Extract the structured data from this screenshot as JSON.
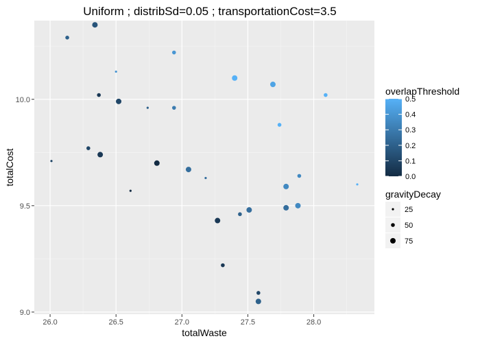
{
  "chart_data": {
    "type": "scatter",
    "title": "Uniform ; distribSd=0.05 ; transportationCost=3.5",
    "xlabel": "totalWaste",
    "ylabel": "totalCost",
    "xlim": [
      25.88,
      28.46
    ],
    "ylim": [
      8.99,
      10.37
    ],
    "xticks": [
      26.0,
      26.5,
      27.0,
      27.5,
      28.0
    ],
    "xtick_labels": [
      "26.0",
      "26.5",
      "27.0",
      "27.5",
      "28.0"
    ],
    "yticks": [
      9.0,
      9.5,
      10.0
    ],
    "ytick_labels": [
      "9.0",
      "9.5",
      "10.0"
    ],
    "grid": true,
    "color_legend": {
      "title": "overlapThreshold",
      "min": 0.0,
      "max": 0.5,
      "low_color": "#132B43",
      "high_color": "#56B1F7",
      "ticks": [
        0.0,
        0.1,
        0.2,
        0.3,
        0.4,
        0.5
      ],
      "tick_labels": [
        "0.0",
        "0.1",
        "0.2",
        "0.3",
        "0.4",
        "0.5"
      ]
    },
    "size_legend": {
      "title": "gravityDecay",
      "values": [
        25,
        50,
        75
      ],
      "labels": [
        "25",
        "50",
        "75"
      ]
    },
    "legend_position": "right",
    "points": [
      {
        "x": 26.34,
        "y": 10.35,
        "overlapThreshold": 0.15,
        "gravityDecay": 75
      },
      {
        "x": 26.13,
        "y": 10.29,
        "overlapThreshold": 0.2,
        "gravityDecay": 50
      },
      {
        "x": 26.5,
        "y": 10.13,
        "overlapThreshold": 0.4,
        "gravityDecay": 25
      },
      {
        "x": 26.94,
        "y": 10.22,
        "overlapThreshold": 0.4,
        "gravityDecay": 50
      },
      {
        "x": 26.37,
        "y": 10.02,
        "overlapThreshold": 0.05,
        "gravityDecay": 50
      },
      {
        "x": 26.52,
        "y": 9.99,
        "overlapThreshold": 0.1,
        "gravityDecay": 75
      },
      {
        "x": 26.74,
        "y": 9.96,
        "overlapThreshold": 0.2,
        "gravityDecay": 25
      },
      {
        "x": 26.94,
        "y": 9.96,
        "overlapThreshold": 0.3,
        "gravityDecay": 50
      },
      {
        "x": 27.4,
        "y": 10.1,
        "overlapThreshold": 0.5,
        "gravityDecay": 75
      },
      {
        "x": 27.69,
        "y": 10.07,
        "overlapThreshold": 0.45,
        "gravityDecay": 75
      },
      {
        "x": 28.09,
        "y": 10.02,
        "overlapThreshold": 0.5,
        "gravityDecay": 50
      },
      {
        "x": 27.74,
        "y": 9.88,
        "overlapThreshold": 0.5,
        "gravityDecay": 50
      },
      {
        "x": 26.01,
        "y": 9.71,
        "overlapThreshold": 0.1,
        "gravityDecay": 25
      },
      {
        "x": 26.29,
        "y": 9.77,
        "overlapThreshold": 0.1,
        "gravityDecay": 50
      },
      {
        "x": 26.38,
        "y": 9.74,
        "overlapThreshold": 0.05,
        "gravityDecay": 75
      },
      {
        "x": 26.81,
        "y": 9.7,
        "overlapThreshold": 0.0,
        "gravityDecay": 75
      },
      {
        "x": 27.05,
        "y": 9.67,
        "overlapThreshold": 0.25,
        "gravityDecay": 75
      },
      {
        "x": 27.18,
        "y": 9.63,
        "overlapThreshold": 0.25,
        "gravityDecay": 25
      },
      {
        "x": 26.61,
        "y": 9.57,
        "overlapThreshold": 0.0,
        "gravityDecay": 25
      },
      {
        "x": 27.89,
        "y": 9.64,
        "overlapThreshold": 0.35,
        "gravityDecay": 50
      },
      {
        "x": 28.33,
        "y": 9.6,
        "overlapThreshold": 0.5,
        "gravityDecay": 25
      },
      {
        "x": 27.79,
        "y": 9.59,
        "overlapThreshold": 0.35,
        "gravityDecay": 75
      },
      {
        "x": 27.51,
        "y": 9.48,
        "overlapThreshold": 0.25,
        "gravityDecay": 75
      },
      {
        "x": 27.44,
        "y": 9.46,
        "overlapThreshold": 0.2,
        "gravityDecay": 50
      },
      {
        "x": 27.79,
        "y": 9.49,
        "overlapThreshold": 0.25,
        "gravityDecay": 75
      },
      {
        "x": 27.88,
        "y": 9.5,
        "overlapThreshold": 0.35,
        "gravityDecay": 75
      },
      {
        "x": 27.27,
        "y": 9.43,
        "overlapThreshold": 0.05,
        "gravityDecay": 75
      },
      {
        "x": 27.31,
        "y": 9.22,
        "overlapThreshold": 0.05,
        "gravityDecay": 50
      },
      {
        "x": 27.58,
        "y": 9.09,
        "overlapThreshold": 0.1,
        "gravityDecay": 50
      },
      {
        "x": 27.58,
        "y": 9.05,
        "overlapThreshold": 0.2,
        "gravityDecay": 75
      }
    ]
  }
}
